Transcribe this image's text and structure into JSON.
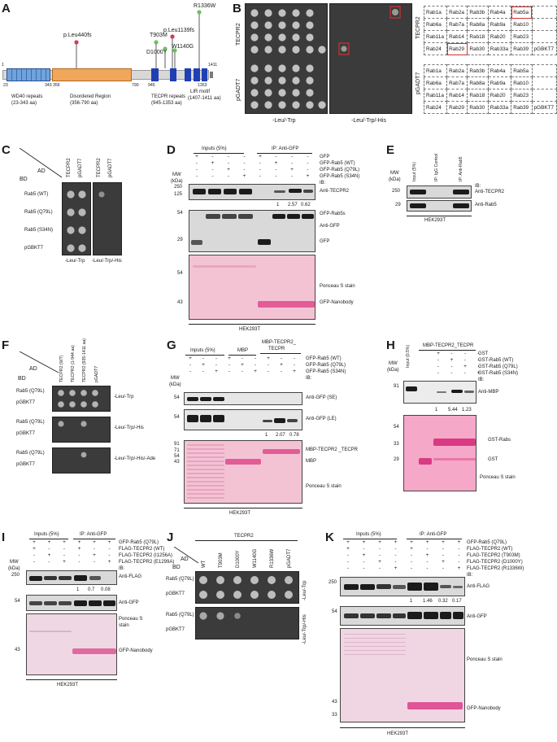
{
  "panels": {
    "A": "A",
    "B": "B",
    "C": "C",
    "D": "D",
    "E": "E",
    "F": "F",
    "G": "G",
    "H": "H",
    "I": "I",
    "J": "J",
    "K": "K"
  },
  "panelA": {
    "pos_1": "1",
    "pos_23": "23",
    "pos_343": "343",
    "pos_356": "356",
    "pos_790": "790",
    "pos_945": "945",
    "pos_1353": "1353",
    "pos_1411": "1411",
    "wd40": "WD40 repeats",
    "wd40_range": "(23-343 aa)",
    "disordered": "Disordered Region",
    "disordered_range": "(356-790 aa)",
    "tecpr": "TECPR repeats",
    "tecpr_range": "(945-1353 aa)",
    "lir": "LIR motif",
    "lir_range": "(1407-1411 aa)",
    "mut_leu440": "p.Leu440fs",
    "mut_t903m": "T903M",
    "mut_leu1139": "p.Leu1139fs",
    "mut_d1000y": "D1000Y",
    "mut_w1140g": "W1140G",
    "mut_r1336w": "R1336W"
  },
  "panelB": {
    "row_tecpr2": "TECPR2",
    "row_pgadt7": "pGADT7",
    "cond1": "-Leu/-Trp",
    "cond2": "-Leu/-Trp/-His",
    "table": [
      [
        "Rab1a",
        "Rab2a",
        "Rab3b",
        "Rab4a",
        "Rab5a",
        ""
      ],
      [
        "Rab6a",
        "Rab7a",
        "Rab8a",
        "Rab9a",
        "Rab10",
        ""
      ],
      [
        "Rab11a",
        "Rab14",
        "Rab18",
        "Rab20",
        "Rab23",
        ""
      ],
      [
        "Rab24",
        "Rab29",
        "Rab30",
        "Rab33a",
        "Rab39",
        "pGBKT7"
      ]
    ]
  },
  "panelC": {
    "ad": "AD",
    "bd": "BD",
    "col1": "TECPR2",
    "col2": "pGADT7",
    "rows": [
      "Rab5 (WT)",
      "Rab5 (Q79L)",
      "Rab5 (S34N)",
      "pGBKT7"
    ],
    "cond1": "-Leu/-Trp",
    "cond2": "-Leu/-Trp/-His"
  },
  "panelD": {
    "inputs": "Inputs (5%)",
    "ip": "IP: Anti-GFP",
    "rows": [
      "GFP",
      "GFP-Rab5 (WT)",
      "GFP-Rab5 (Q79L)",
      "GFP-Rab5 (S34N)"
    ],
    "signs": [
      [
        "+",
        "-",
        "-",
        "-",
        "+",
        "-",
        "-",
        "-"
      ],
      [
        "-",
        "+",
        "-",
        "-",
        "-",
        "+",
        "-",
        "-"
      ],
      [
        "-",
        "-",
        "+",
        "-",
        "-",
        "-",
        "+",
        "-"
      ],
      [
        "-",
        "-",
        "-",
        "+",
        "-",
        "-",
        "-",
        "+"
      ]
    ],
    "mw": "MW",
    "kda": "(kDa)",
    "ib": "IB:",
    "m250": "250",
    "m125": "125",
    "m54": "54",
    "m29": "29",
    "m54b": "54",
    "m43": "43",
    "anti_tecpr2": "Anti-TECPR2",
    "quant": [
      "1",
      "2.57",
      "0.62"
    ],
    "gfp_rab5s": "GFP-Rab5s",
    "anti_gfp": "Anti-GFP",
    "gfp": "GFP",
    "ponceau": "Ponceau S stain",
    "nanobody": "GFP-Nanobody",
    "cell": "HEK293T"
  },
  "panelE": {
    "input": "Input (5%)",
    "igg": "IP: IgG Control",
    "iprab5": "IP: Anti-Rab5",
    "mw": "MW",
    "kda": "(kDa)",
    "ib": "IB:",
    "m250": "250",
    "m29": "29",
    "anti_tecpr2": "Anti-TECPR2",
    "anti_rab5": "Anti-Rab5",
    "cell": "HEK293T"
  },
  "panelF": {
    "ad": "AD",
    "bd": "BD",
    "cols": [
      "TECPR2 (WT)",
      "TECPR2 (1-944 aa)",
      "TECPR2 (935-1411 aa)",
      "pGADT7"
    ],
    "row_q79l": "Rab5 (Q79L)",
    "row_pgbkt7": "pGBKT7",
    "cond1": "-Leu/-Trp",
    "cond2": "-Leu/-Trp/-His",
    "cond3": "-Leu/-Trp/-His/-Ade"
  },
  "panelG": {
    "inputs": "Inputs (5%)",
    "mbp": "MBP",
    "mbp_tecpr": "MBP-TECPR2_",
    "mbp_tecpr2": "TECPR",
    "rows": [
      "GFP-Rab5 (WT)",
      "GFP-Rab5 (Q79L)",
      "GFP-Rab5 (S34N)"
    ],
    "signs": [
      [
        "+",
        "-",
        "-",
        "+",
        "-",
        "-",
        "+",
        "-",
        "-"
      ],
      [
        "-",
        "+",
        "-",
        "-",
        "+",
        "-",
        "-",
        "+",
        "-"
      ],
      [
        "-",
        "-",
        "+",
        "-",
        "-",
        "+",
        "-",
        "-",
        "+"
      ]
    ],
    "mw": "MW",
    "kda": "(kDa)",
    "ib": "IB:",
    "m54": "54",
    "m54b": "54",
    "m91": "91",
    "m71": "71",
    "m54c": "54",
    "m43": "43",
    "se": "Anti-GFP (SE)",
    "le": "Anti-GFP (LE)",
    "quant": [
      "1",
      "2.07",
      "0.78"
    ],
    "mbp_tecpr_band": "MBP-TECPR2 _TECPR",
    "mbp_band": "MBP",
    "ponceau": "Ponceau S stain",
    "cell": "HEK293T"
  },
  "panelH": {
    "header": "MBP-TECPR2_TECPR",
    "input": "Input (0.5%)",
    "rows": [
      "GST",
      "GST-Rab5 (WT)",
      "GST-Rab5 (Q79L)",
      "GST-Rab5 (S34N)"
    ],
    "signs": [
      [
        "+",
        "-",
        "-",
        "-"
      ],
      [
        "-",
        "+",
        "-",
        "-"
      ],
      [
        "-",
        "-",
        "+",
        "-"
      ],
      [
        "-",
        "-",
        "-",
        "+"
      ]
    ],
    "mw": "MW",
    "kda": "(kDa)",
    "ib": "IB:",
    "m91": "91",
    "anti_mbp": "Anti-MBP",
    "quant": [
      "1",
      "5.44",
      "1.23"
    ],
    "m54": "54",
    "m33": "33",
    "m29": "29",
    "gst_rabs": "GST-Rabs",
    "gst": "GST",
    "ponceau": "Ponceau S stain"
  },
  "panelI": {
    "inputs": "Inputs (5%)",
    "ip": "IP: Anti-GFP",
    "rows": [
      "GFP-Rab5 (Q79L)",
      "FLAG-TECPR2 (WT)",
      "FLAG-TECPR2 (I1256A)",
      "FLAG-TECPR2 (E1299A)"
    ],
    "signs": [
      [
        "+",
        "+",
        "+",
        "+",
        "+",
        "+"
      ],
      [
        "+",
        "-",
        "-",
        "+",
        "-",
        "-"
      ],
      [
        "-",
        "+",
        "-",
        "-",
        "+",
        "-"
      ],
      [
        "-",
        "-",
        "+",
        "-",
        "-",
        "+"
      ]
    ],
    "mw": "MW",
    "kda": "(kDa)",
    "ib": "IB:",
    "m250": "250",
    "m54": "54",
    "m43": "43",
    "anti_flag": "Anti-FLAG",
    "quant": [
      "1",
      "0.7",
      "0.08"
    ],
    "anti_gfp": "Anti-GFP",
    "ponceau1": "Ponceau S",
    "ponceau2": "stain",
    "nanobody": "GFP-Nanobody",
    "cell": "HEK293T"
  },
  "panelJ": {
    "header": "TECPR2",
    "ad": "AD",
    "bd": "BD",
    "cols": [
      "WT",
      "T903M",
      "D1000Y",
      "W1140G",
      "R1336W",
      "pGADT7"
    ],
    "row_q79l": "Rab5 (Q79L)",
    "row_pgbkt7": "pGBKT7",
    "cond1": "-Leu/-Trp",
    "cond2": "-Leu/-Trp/-His"
  },
  "panelK": {
    "inputs": "Inputs (5%)",
    "ip": "IP: Anti-GFP",
    "rows": [
      "GFP-Rab5 (Q79L)",
      "FLAG-TECPR2 (WT)",
      "FLAG-TECPR2 (T903M)",
      "FLAG-TECPR2 (D1000Y)",
      "FLAG-TECPR2 (R1336W)"
    ],
    "signs": [
      [
        "+",
        "+",
        "+",
        "+",
        "+",
        "+",
        "+",
        "+"
      ],
      [
        "+",
        "-",
        "-",
        "-",
        "+",
        "-",
        "-",
        "-"
      ],
      [
        "-",
        "+",
        "-",
        "-",
        "-",
        "+",
        "-",
        "-"
      ],
      [
        "-",
        "-",
        "+",
        "-",
        "-",
        "-",
        "+",
        "-"
      ],
      [
        "-",
        "-",
        "-",
        "+",
        "-",
        "-",
        "-",
        "+"
      ]
    ],
    "ib": "IB:",
    "m250": "250",
    "m54": "54",
    "m43": "43",
    "m33": "33",
    "anti_flag": "Anti-FLAG",
    "quant": [
      "1",
      "1.46",
      "0.32",
      "0.17"
    ],
    "anti_gfp": "Anti-GFP",
    "ponceau": "Ponceau S stain",
    "nanobody": "GFP-Nanobody",
    "cell": "HEK293T"
  }
}
